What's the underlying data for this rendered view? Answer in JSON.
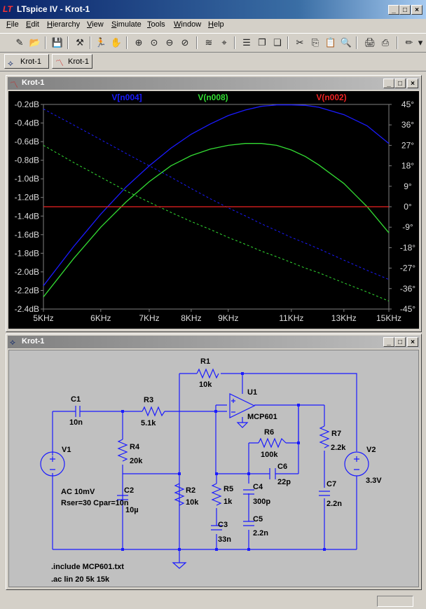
{
  "window": {
    "title": "LTspice IV - Krot-1"
  },
  "menu": [
    {
      "label": "File",
      "key": "F",
      "rest": "ile"
    },
    {
      "label": "Edit",
      "key": "E",
      "rest": "dit"
    },
    {
      "label": "Hierarchy",
      "key": "H",
      "rest": "ierarchy"
    },
    {
      "label": "View",
      "key": "V",
      "rest": "iew"
    },
    {
      "label": "Simulate",
      "key": "S",
      "rest": "imulate"
    },
    {
      "label": "Tools",
      "key": "T",
      "rest": "ools"
    },
    {
      "label": "Window",
      "key": "W",
      "rest": "indow"
    },
    {
      "label": "Help",
      "key": "H",
      "rest": "elp"
    }
  ],
  "tabs": [
    {
      "label": "Krot-1",
      "icon": "schematic-icon"
    },
    {
      "label": "Krot-1",
      "icon": "waveform-icon"
    }
  ],
  "plot_window": {
    "title": "Krot-1"
  },
  "schematic_window": {
    "title": "Krot-1"
  },
  "chart_data": {
    "type": "line",
    "x_scale": "log",
    "x_unit": "Hz",
    "xlim": [
      5000,
      15000
    ],
    "x_ticks": [
      5000,
      6000,
      7000,
      8000,
      9000,
      11000,
      13000,
      15000
    ],
    "x_tick_labels": [
      "5KHz",
      "6KHz",
      "7KHz",
      "8KHz",
      "9KHz",
      "11KHz",
      "13KHz",
      "15KHz"
    ],
    "ylim_left": [
      -2.4,
      -0.2
    ],
    "y_left_ticks": [
      -0.2,
      -0.4,
      -0.6,
      -0.8,
      -1.0,
      -1.2,
      -1.4,
      -1.6,
      -1.8,
      -2.0,
      -2.2,
      -2.4
    ],
    "y_left_tick_labels": [
      "-0.2dB",
      "-0.4dB",
      "-0.6dB",
      "-0.8dB",
      "-1.0dB",
      "-1.2dB",
      "-1.4dB",
      "-1.6dB",
      "-1.8dB",
      "-2.0dB",
      "-2.2dB",
      "-2.4dB"
    ],
    "ylim_right": [
      -45,
      45
    ],
    "y_right_ticks": [
      45,
      36,
      27,
      18,
      9,
      0,
      -9,
      -18,
      -27,
      -36,
      -45
    ],
    "y_right_tick_labels": [
      "45°",
      "36°",
      "27°",
      "18°",
      "9°",
      "0°",
      "-9°",
      "-18°",
      "-27°",
      "-36°",
      "-45°"
    ],
    "grid": false,
    "series": [
      {
        "name": "V[n004]",
        "color": "#1a1aff",
        "x": [
          5000,
          5500,
          6000,
          6500,
          7000,
          7500,
          8000,
          8500,
          9000,
          9500,
          10000,
          10500,
          11000,
          11500,
          12000,
          13000,
          14000,
          15000
        ],
        "magnitude_db": [
          -2.15,
          -1.73,
          -1.38,
          -1.09,
          -0.86,
          -0.67,
          -0.52,
          -0.41,
          -0.32,
          -0.26,
          -0.22,
          -0.205,
          -0.205,
          -0.21,
          -0.23,
          -0.31,
          -0.43,
          -0.62
        ],
        "phase_deg": [
          43,
          36,
          29.5,
          23.5,
          18,
          13,
          8,
          3.5,
          -0.5,
          -4,
          -7.5,
          -10.5,
          -13.5,
          -16,
          -18.5,
          -23.5,
          -28,
          -32
        ]
      },
      {
        "name": "V(n008)",
        "color": "#33dd33",
        "x": [
          5000,
          5500,
          6000,
          6500,
          7000,
          7500,
          8000,
          8500,
          9000,
          9500,
          10000,
          10500,
          11000,
          11500,
          12000,
          13000,
          14000,
          15000
        ],
        "magnitude_db": [
          -2.27,
          -1.86,
          -1.52,
          -1.25,
          -1.03,
          -0.86,
          -0.75,
          -0.68,
          -0.64,
          -0.62,
          -0.62,
          -0.64,
          -0.69,
          -0.76,
          -0.85,
          -1.05,
          -1.3,
          -1.58
        ],
        "phase_deg": [
          27,
          19.5,
          13,
          7,
          2,
          -2.5,
          -6.5,
          -10,
          -13.5,
          -16.5,
          -19.5,
          -22,
          -24.5,
          -27,
          -29,
          -33.5,
          -37.5,
          -41.5
        ]
      },
      {
        "name": "V(n002)",
        "color": "#ee2222",
        "x": [
          5000,
          15000
        ],
        "magnitude_db": [
          -1.3,
          -1.3
        ],
        "phase_deg": [
          0,
          0
        ]
      }
    ]
  },
  "schematic": {
    "components": [
      {
        "ref": "R1",
        "value": "10k"
      },
      {
        "ref": "U1",
        "value": "MCP601"
      },
      {
        "ref": "C1",
        "value": "10n"
      },
      {
        "ref": "R3",
        "value": "5.1k"
      },
      {
        "ref": "R6",
        "value": "100k"
      },
      {
        "ref": "R7",
        "value": "2.2k"
      },
      {
        "ref": "V1",
        "value": ""
      },
      {
        "ref": "R4",
        "value": "20k"
      },
      {
        "ref": "V2",
        "value": "3.3V"
      },
      {
        "ref": "C6",
        "value": "22p"
      },
      {
        "ref": "C2",
        "value": "10µ"
      },
      {
        "ref": "R5",
        "value": "1k"
      },
      {
        "ref": "C4",
        "value": "300p"
      },
      {
        "ref": "C7",
        "value": "2.2n"
      },
      {
        "ref": "R2",
        "value": "10k"
      },
      {
        "ref": "C3",
        "value": "33n"
      },
      {
        "ref": "C5",
        "value": "2.2n"
      }
    ],
    "v1_params": [
      "AC 10mV",
      "Rser=30 Cpar=10n"
    ],
    "directives": [
      ".include MCP601.txt",
      ".ac lin 20 5k 15k"
    ]
  }
}
